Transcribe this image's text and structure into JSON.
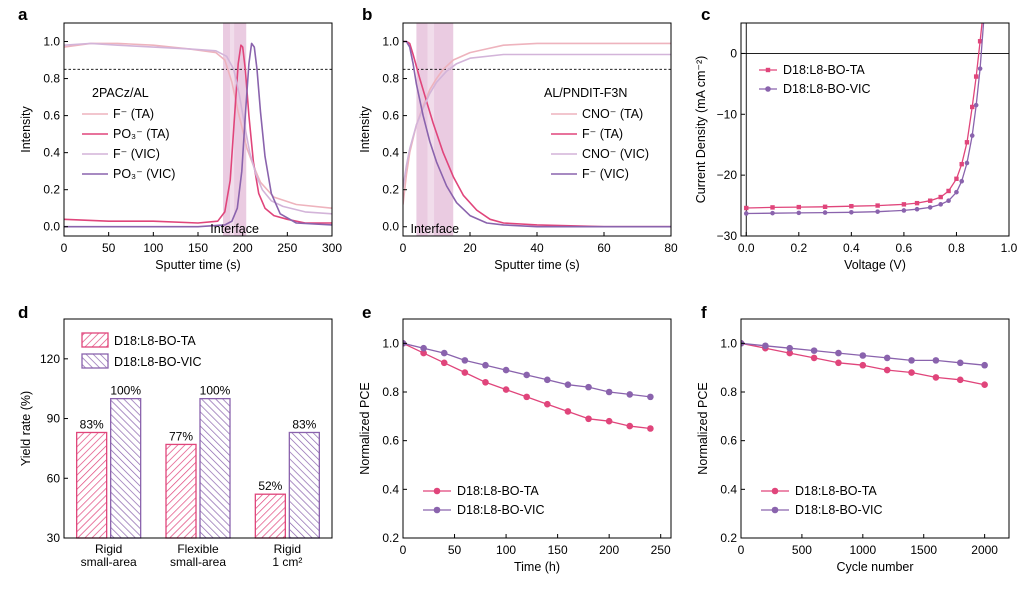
{
  "colors": {
    "ta": "#e0457b",
    "vic": "#8a63ad",
    "ta_light": "#f2a8ba",
    "vic_light": "#d3b4d9",
    "ta_fluor_light": "#eeb3bd",
    "shade": "#d9a0c9",
    "ref_line": "#000000"
  },
  "chart_data": [
    {
      "panel": "a",
      "type": "line",
      "xlabel": "Sputter time (s)",
      "ylabel": "Intensity",
      "xlim": [
        0,
        300
      ],
      "ylim": [
        -0.05,
        1.1
      ],
      "xticks": [
        0,
        50,
        100,
        150,
        200,
        250,
        300
      ],
      "yticks": [
        0.0,
        0.2,
        0.4,
        0.6,
        0.8,
        1.0
      ],
      "xtick_labels": [
        "0",
        "50",
        "100",
        "150",
        "200",
        "250",
        "300"
      ],
      "ytick_labels": [
        "0.0",
        "0.2",
        "0.4",
        "0.6",
        "0.8",
        "1.0"
      ],
      "legend_title": "2PACz/AL",
      "legend_loc": "left",
      "ref_line_y": 0.85,
      "shade": {
        "x": [
          178,
          204
        ],
        "label": "Interface"
      },
      "series": [
        {
          "name": "F⁻ (TA)",
          "color_key": "ta_fluor_light",
          "x": [
            0,
            30,
            60,
            100,
            140,
            170,
            180,
            188,
            195,
            200,
            205,
            212,
            220,
            235,
            260,
            300
          ],
          "y": [
            0.97,
            0.99,
            0.99,
            0.98,
            0.96,
            0.94,
            0.9,
            0.78,
            0.62,
            0.52,
            0.42,
            0.33,
            0.24,
            0.16,
            0.12,
            0.1
          ]
        },
        {
          "name": "PO₃⁻ (TA)",
          "color_key": "ta",
          "x": [
            0,
            50,
            100,
            150,
            172,
            180,
            186,
            191,
            195,
            198,
            200,
            203,
            207,
            212,
            218,
            225,
            235,
            250,
            270,
            300
          ],
          "y": [
            0.04,
            0.03,
            0.03,
            0.02,
            0.03,
            0.08,
            0.25,
            0.6,
            0.88,
            0.98,
            0.97,
            0.85,
            0.6,
            0.35,
            0.18,
            0.1,
            0.06,
            0.04,
            0.02,
            0.02
          ]
        },
        {
          "name": "F⁻ (VIC)",
          "color_key": "vic_light",
          "x": [
            0,
            30,
            60,
            100,
            140,
            170,
            182,
            190,
            196,
            202,
            208,
            215,
            222,
            232,
            245,
            270,
            300
          ],
          "y": [
            0.98,
            0.99,
            0.98,
            0.97,
            0.96,
            0.95,
            0.92,
            0.85,
            0.72,
            0.55,
            0.4,
            0.28,
            0.2,
            0.14,
            0.11,
            0.08,
            0.07
          ]
        },
        {
          "name": "PO₃⁻ (VIC)",
          "color_key": "vic",
          "x": [
            0,
            50,
            100,
            150,
            180,
            188,
            194,
            199,
            203,
            207,
            210,
            213,
            216,
            220,
            225,
            232,
            242,
            260,
            300
          ],
          "y": [
            0.0,
            0.0,
            0.0,
            0.0,
            0.01,
            0.03,
            0.1,
            0.3,
            0.6,
            0.88,
            0.99,
            0.97,
            0.85,
            0.62,
            0.38,
            0.18,
            0.07,
            0.02,
            0.01
          ]
        }
      ]
    },
    {
      "panel": "b",
      "type": "line",
      "xlabel": "Sputter time (s)",
      "ylabel": "Intensity",
      "xlim": [
        0,
        80
      ],
      "ylim": [
        -0.05,
        1.1
      ],
      "xticks": [
        0,
        20,
        40,
        60,
        80
      ],
      "yticks": [
        0.0,
        0.2,
        0.4,
        0.6,
        0.8,
        1.0
      ],
      "xtick_labels": [
        "0",
        "20",
        "40",
        "60",
        "80"
      ],
      "ytick_labels": [
        "0.0",
        "0.2",
        "0.4",
        "0.6",
        "0.8",
        "1.0"
      ],
      "legend_title": "AL/PNDIT-F3N",
      "legend_loc": "right",
      "ref_line_y": 0.85,
      "shade": {
        "x": [
          4,
          15
        ],
        "label": "Interface"
      },
      "series": [
        {
          "name": "CNO⁻ (TA)",
          "color_key": "ta_fluor_light",
          "x": [
            0,
            1,
            2,
            4,
            6,
            8,
            10,
            12,
            15,
            20,
            25,
            30,
            40,
            60,
            80
          ],
          "y": [
            0.12,
            0.28,
            0.4,
            0.55,
            0.65,
            0.74,
            0.8,
            0.85,
            0.9,
            0.94,
            0.96,
            0.98,
            0.99,
            0.99,
            0.99
          ]
        },
        {
          "name": "F⁻ (TA)",
          "color_key": "ta",
          "x": [
            0,
            1,
            2,
            3,
            5,
            7,
            9,
            12,
            15,
            18,
            22,
            26,
            30,
            40,
            60,
            80
          ],
          "y": [
            1.0,
            1.0,
            0.99,
            0.93,
            0.8,
            0.68,
            0.56,
            0.4,
            0.27,
            0.17,
            0.09,
            0.04,
            0.02,
            0.01,
            0.0,
            0.0
          ]
        },
        {
          "name": "CNO⁻ (VIC)",
          "color_key": "vic_light",
          "x": [
            0,
            1,
            2,
            4,
            6,
            8,
            10,
            13,
            16,
            20,
            30,
            40,
            60,
            80
          ],
          "y": [
            0.21,
            0.33,
            0.42,
            0.55,
            0.64,
            0.72,
            0.78,
            0.84,
            0.88,
            0.91,
            0.93,
            0.93,
            0.93,
            0.93
          ]
        },
        {
          "name": "F⁻ (VIC)",
          "color_key": "vic",
          "x": [
            0,
            1,
            2,
            3,
            4,
            6,
            8,
            10,
            13,
            16,
            20,
            25,
            30,
            40,
            60,
            80
          ],
          "y": [
            1.0,
            1.0,
            0.97,
            0.88,
            0.77,
            0.6,
            0.46,
            0.35,
            0.22,
            0.13,
            0.06,
            0.02,
            0.01,
            0.0,
            0.0,
            0.0
          ]
        }
      ]
    },
    {
      "panel": "c",
      "type": "line",
      "xlabel": "Voltage (V)",
      "ylabel": "Current Density (mA cm⁻²)",
      "xlim": [
        -0.02,
        1.0
      ],
      "ylim": [
        -30,
        5
      ],
      "xticks": [
        0.0,
        0.2,
        0.4,
        0.6,
        0.8,
        1.0
      ],
      "yticks": [
        -30,
        -20,
        -10,
        0
      ],
      "xtick_labels": [
        "0.0",
        "0.2",
        "0.4",
        "0.6",
        "0.8",
        "1.0"
      ],
      "ytick_labels": [
        "−30",
        "−20",
        "−10",
        "0"
      ],
      "legend_loc": "top-left",
      "ref_line_y": 0,
      "series": [
        {
          "name": "D18:L8-BO-TA",
          "color_key": "ta",
          "x": [
            0.0,
            0.1,
            0.2,
            0.3,
            0.4,
            0.5,
            0.6,
            0.65,
            0.7,
            0.74,
            0.77,
            0.8,
            0.82,
            0.84,
            0.86,
            0.875,
            0.89,
            0.9
          ],
          "y": [
            -25.4,
            -25.3,
            -25.25,
            -25.2,
            -25.1,
            -25.0,
            -24.8,
            -24.6,
            -24.2,
            -23.6,
            -22.6,
            -20.6,
            -18.2,
            -14.6,
            -8.8,
            -3.8,
            2.0,
            6.0
          ]
        },
        {
          "name": "D18:L8-BO-VIC",
          "color_key": "vic",
          "x": [
            0.0,
            0.1,
            0.2,
            0.3,
            0.4,
            0.5,
            0.6,
            0.65,
            0.7,
            0.74,
            0.77,
            0.8,
            0.82,
            0.84,
            0.86,
            0.875,
            0.89,
            0.905
          ],
          "y": [
            -26.3,
            -26.25,
            -26.2,
            -26.15,
            -26.1,
            -26.0,
            -25.8,
            -25.6,
            -25.3,
            -24.8,
            -24.2,
            -22.8,
            -21.0,
            -18.0,
            -13.5,
            -8.5,
            -2.5,
            6.0
          ]
        }
      ]
    },
    {
      "panel": "d",
      "type": "bar",
      "ylabel": "Yield rate (%)",
      "ylim": [
        30,
        140
      ],
      "yticks": [
        30,
        60,
        90,
        120
      ],
      "ytick_labels": [
        "30",
        "60",
        "90",
        "120"
      ],
      "categories": [
        "Rigid\nsmall-area",
        "Flexible\nsmall-area",
        "Rigid\n1 cm²"
      ],
      "legend_loc": "top-left",
      "series": [
        {
          "name": "D18:L8-BO-TA",
          "color_key": "ta",
          "values": [
            83,
            77,
            52
          ],
          "labels": [
            "83%",
            "77%",
            "52%"
          ]
        },
        {
          "name": "D18:L8-BO-VIC",
          "color_key": "vic",
          "values": [
            100,
            100,
            83
          ],
          "labels": [
            "100%",
            "100%",
            "83%"
          ]
        }
      ]
    },
    {
      "panel": "e",
      "type": "line",
      "xlabel": "Time (h)",
      "ylabel": "Normalized PCE",
      "xlim": [
        0,
        260
      ],
      "ylim": [
        0.2,
        1.1
      ],
      "xticks": [
        0,
        50,
        100,
        150,
        200,
        250
      ],
      "yticks": [
        0.2,
        0.4,
        0.6,
        0.8,
        1.0
      ],
      "xtick_labels": [
        "0",
        "50",
        "100",
        "150",
        "200",
        "250"
      ],
      "ytick_labels": [
        "0.2",
        "0.4",
        "0.6",
        "0.8",
        "1.0"
      ],
      "legend_loc": "bottom-left",
      "series": [
        {
          "name": "D18:L8-BO-TA",
          "color_key": "ta",
          "x": [
            0,
            20,
            40,
            60,
            80,
            100,
            120,
            140,
            160,
            180,
            200,
            220,
            240
          ],
          "y": [
            1.0,
            0.96,
            0.92,
            0.88,
            0.84,
            0.81,
            0.78,
            0.75,
            0.72,
            0.69,
            0.68,
            0.66,
            0.65
          ]
        },
        {
          "name": "D18:L8-BO-VIC",
          "color_key": "vic",
          "x": [
            0,
            20,
            40,
            60,
            80,
            100,
            120,
            140,
            160,
            180,
            200,
            220,
            240
          ],
          "y": [
            1.0,
            0.98,
            0.96,
            0.93,
            0.91,
            0.89,
            0.87,
            0.85,
            0.83,
            0.82,
            0.8,
            0.79,
            0.78
          ]
        }
      ]
    },
    {
      "panel": "f",
      "type": "line",
      "xlabel": "Cycle number",
      "ylabel": "Normalized PCE",
      "xlim": [
        0,
        2200
      ],
      "ylim": [
        0.2,
        1.1
      ],
      "xticks": [
        0,
        500,
        1000,
        1500,
        2000
      ],
      "yticks": [
        0.2,
        0.4,
        0.6,
        0.8,
        1.0
      ],
      "xtick_labels": [
        "0",
        "500",
        "1000",
        "1500",
        "2000"
      ],
      "ytick_labels": [
        "0.2",
        "0.4",
        "0.6",
        "0.8",
        "1.0"
      ],
      "legend_loc": "bottom-left",
      "series": [
        {
          "name": "D18:L8-BO-TA",
          "color_key": "ta",
          "x": [
            0,
            200,
            400,
            600,
            800,
            1000,
            1200,
            1400,
            1600,
            1800,
            2000
          ],
          "y": [
            1.0,
            0.98,
            0.96,
            0.94,
            0.92,
            0.91,
            0.89,
            0.88,
            0.86,
            0.85,
            0.83
          ]
        },
        {
          "name": "D18:L8-BO-VIC",
          "color_key": "vic",
          "x": [
            0,
            200,
            400,
            600,
            800,
            1000,
            1200,
            1400,
            1600,
            1800,
            2000
          ],
          "y": [
            1.0,
            0.99,
            0.98,
            0.97,
            0.96,
            0.95,
            0.94,
            0.93,
            0.93,
            0.92,
            0.91
          ]
        }
      ]
    }
  ]
}
